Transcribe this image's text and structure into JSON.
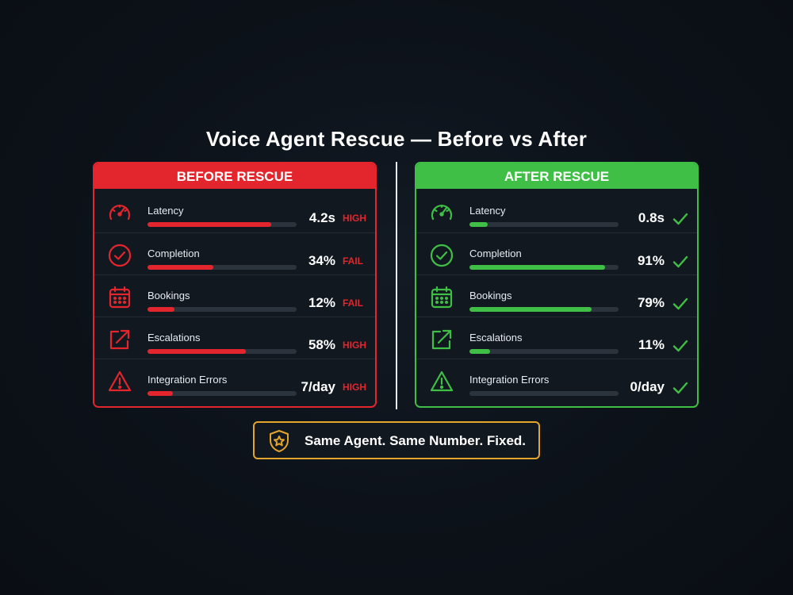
{
  "title": "Voice Agent Rescue — Before vs After",
  "colors": {
    "before_accent": "#e3262d",
    "after_accent": "#3fbf45",
    "banner_accent": "#e3a52b"
  },
  "before": {
    "header": "BEFORE RESCUE",
    "metrics": [
      {
        "label": "Latency",
        "value": "4.2s",
        "status": "HIGH",
        "bar_fraction": 0.83,
        "icon": "speedometer-icon"
      },
      {
        "label": "Completion",
        "value": "34%",
        "status": "FAIL",
        "bar_fraction": 0.44,
        "icon": "check-circle-icon"
      },
      {
        "label": "Bookings",
        "value": "12%",
        "status": "FAIL",
        "bar_fraction": 0.18,
        "icon": "calendar-icon"
      },
      {
        "label": "Escalations",
        "value": "58%",
        "status": "HIGH",
        "bar_fraction": 0.66,
        "icon": "external-arrow-icon"
      },
      {
        "label": "Integration Errors",
        "value": "7/day",
        "status": "HIGH",
        "bar_fraction": 0.17,
        "icon": "warning-triangle-icon"
      }
    ]
  },
  "after": {
    "header": "AFTER RESCUE",
    "metrics": [
      {
        "label": "Latency",
        "value": "0.8s",
        "bar_fraction": 0.12,
        "icon": "speedometer-icon"
      },
      {
        "label": "Completion",
        "value": "91%",
        "bar_fraction": 0.91,
        "icon": "check-circle-icon"
      },
      {
        "label": "Bookings",
        "value": "79%",
        "bar_fraction": 0.82,
        "icon": "calendar-icon"
      },
      {
        "label": "Escalations",
        "value": "11%",
        "bar_fraction": 0.14,
        "icon": "external-arrow-icon"
      },
      {
        "label": "Integration Errors",
        "value": "0/day",
        "bar_fraction": 0.0,
        "icon": "warning-triangle-icon"
      }
    ]
  },
  "banner": {
    "text": "Same Agent. Same Number. Fixed.",
    "icon": "shield-star-icon"
  }
}
